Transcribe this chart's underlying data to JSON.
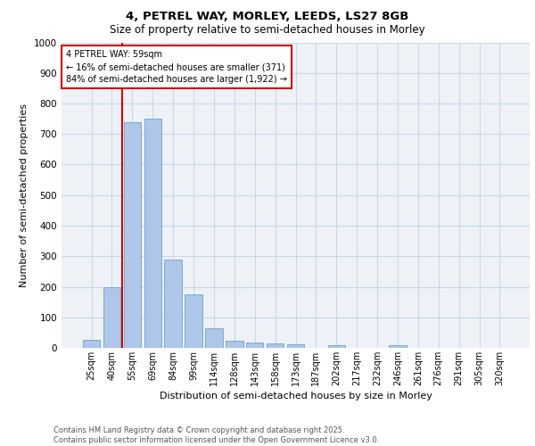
{
  "title1": "4, PETREL WAY, MORLEY, LEEDS, LS27 8GB",
  "title2": "Size of property relative to semi-detached houses in Morley",
  "xlabel": "Distribution of semi-detached houses by size in Morley",
  "ylabel": "Number of semi-detached properties",
  "categories": [
    "25sqm",
    "40sqm",
    "55sqm",
    "69sqm",
    "84sqm",
    "99sqm",
    "114sqm",
    "128sqm",
    "143sqm",
    "158sqm",
    "173sqm",
    "187sqm",
    "202sqm",
    "217sqm",
    "232sqm",
    "246sqm",
    "261sqm",
    "276sqm",
    "291sqm",
    "305sqm",
    "320sqm"
  ],
  "values": [
    25,
    200,
    740,
    750,
    290,
    175,
    65,
    22,
    18,
    14,
    13,
    0,
    8,
    0,
    0,
    8,
    0,
    0,
    0,
    0,
    0
  ],
  "bar_color": "#aec6e8",
  "bar_edge_color": "#7aaad0",
  "vline_x_index": 2,
  "vline_color": "#cc0000",
  "annotation_title": "4 PETREL WAY: 59sqm",
  "annotation_line1": "← 16% of semi-detached houses are smaller (371)",
  "annotation_line2": "84% of semi-detached houses are larger (1,922) →",
  "annotation_box_color": "#ffffff",
  "annotation_box_edge_color": "#cc0000",
  "ylim": [
    0,
    1000
  ],
  "yticks": [
    0,
    100,
    200,
    300,
    400,
    500,
    600,
    700,
    800,
    900,
    1000
  ],
  "grid_color": "#c8d8ea",
  "background_color": "#eef2f7",
  "footer1": "Contains HM Land Registry data © Crown copyright and database right 2025.",
  "footer2": "Contains public sector information licensed under the Open Government Licence v3.0."
}
